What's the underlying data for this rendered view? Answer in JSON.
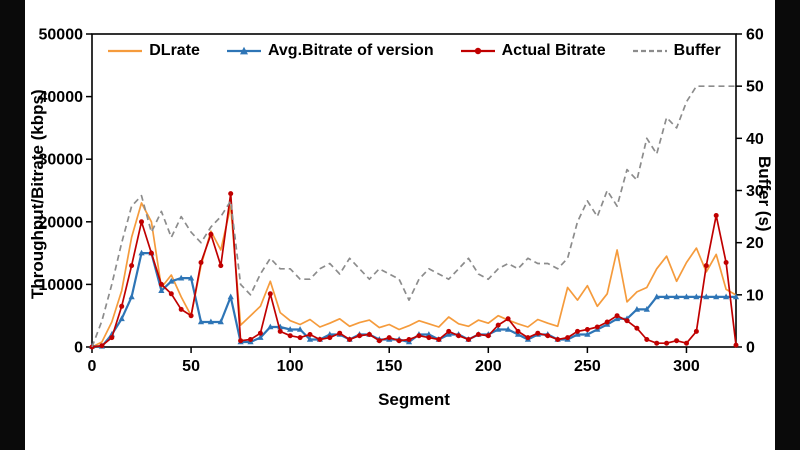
{
  "figure": {
    "left_axis_label": "Throughput/Bitrate (kbps)",
    "right_axis_label": "Buffer (s)",
    "x_axis_label": "Segment"
  },
  "colors": {
    "dlrate": "#F59B3C",
    "avg_bitrate": "#2E75B6",
    "actual_bitrate": "#C00000",
    "buffer": "#8C8C8C",
    "axis": "#000000",
    "background": "#FFFFFF",
    "letterbox": "#0A0A0A"
  },
  "chart_data": {
    "type": "line",
    "title": "",
    "xlabel": "Segment",
    "ylabel_left": "Throughput/Bitrate (kbps)",
    "ylabel_right": "Buffer (s)",
    "xlim": [
      0,
      325
    ],
    "ylim_left": [
      0,
      50000
    ],
    "ylim_right": [
      0,
      60
    ],
    "x_ticks": [
      0,
      50,
      100,
      150,
      200,
      250,
      300
    ],
    "y_ticks_left": [
      0,
      10000,
      20000,
      30000,
      40000,
      50000
    ],
    "y_ticks_right": [
      0,
      10,
      20,
      30,
      40,
      50,
      60
    ],
    "grid": false,
    "legend_position": "top",
    "x": [
      0,
      5,
      10,
      15,
      20,
      25,
      30,
      35,
      40,
      45,
      50,
      55,
      60,
      65,
      70,
      75,
      80,
      85,
      90,
      95,
      100,
      105,
      110,
      115,
      120,
      125,
      130,
      135,
      140,
      145,
      150,
      155,
      160,
      165,
      170,
      175,
      180,
      185,
      190,
      195,
      200,
      205,
      210,
      215,
      220,
      225,
      230,
      235,
      240,
      245,
      250,
      255,
      260,
      265,
      270,
      275,
      280,
      285,
      290,
      295,
      300,
      305,
      310,
      315,
      320,
      325
    ],
    "series": [
      {
        "name": "DLrate",
        "axis": "left",
        "color": "#F59B3C",
        "style": "solid",
        "marker": "none",
        "values": [
          0,
          800,
          4000,
          9000,
          17500,
          23000,
          20000,
          9500,
          11500,
          8000,
          5000,
          13000,
          18500,
          15500,
          22500,
          3500,
          5000,
          6500,
          10500,
          5500,
          4200,
          3600,
          4400,
          3200,
          3800,
          4500,
          3300,
          3900,
          4300,
          3100,
          3600,
          2800,
          3400,
          4200,
          3700,
          3200,
          4800,
          3700,
          3300,
          4300,
          3800,
          5000,
          4300,
          3700,
          3200,
          4400,
          3800,
          3300,
          9500,
          7500,
          9800,
          6500,
          8500,
          15500,
          7200,
          8800,
          9500,
          12500,
          14500,
          10500,
          13500,
          15800,
          12000,
          14800,
          9200,
          8300
        ]
      },
      {
        "name": "Avg.Bitrate of version",
        "axis": "left",
        "color": "#2E75B6",
        "style": "solid",
        "marker": "triangle",
        "values": [
          100,
          100,
          2000,
          4500,
          8000,
          15000,
          15000,
          9000,
          10500,
          11000,
          11000,
          4000,
          4000,
          4000,
          8000,
          800,
          800,
          1500,
          3200,
          3200,
          2800,
          2800,
          1200,
          1200,
          2000,
          2000,
          1200,
          2000,
          2000,
          1200,
          1200,
          1200,
          800,
          2000,
          2000,
          1200,
          2000,
          2000,
          1200,
          2000,
          2000,
          2800,
          2800,
          2000,
          1200,
          2000,
          2000,
          1200,
          1200,
          2000,
          2000,
          2800,
          3600,
          4500,
          4500,
          6000,
          6000,
          8000,
          8000,
          8000,
          8000,
          8000,
          8000,
          8000,
          8000,
          8000
        ]
      },
      {
        "name": "Actual Bitrate",
        "axis": "left",
        "color": "#C00000",
        "style": "solid",
        "marker": "circle",
        "values": [
          0,
          200,
          1500,
          6500,
          13000,
          20000,
          15000,
          10000,
          8500,
          6000,
          5000,
          13500,
          18000,
          13000,
          24500,
          1000,
          1200,
          2200,
          8500,
          2500,
          1800,
          1500,
          2000,
          1200,
          1500,
          2200,
          1200,
          1800,
          2000,
          1000,
          1500,
          1000,
          1200,
          1800,
          1500,
          1200,
          2500,
          1800,
          1200,
          2000,
          1800,
          3500,
          4500,
          2500,
          1500,
          2200,
          1800,
          1200,
          1500,
          2500,
          2800,
          3200,
          4000,
          5000,
          4200,
          3000,
          1200,
          600,
          600,
          1000,
          600,
          2500,
          13000,
          21000,
          13500,
          300
        ]
      },
      {
        "name": "Buffer",
        "axis": "right",
        "color": "#8C8C8C",
        "style": "dashed",
        "marker": "none",
        "values": [
          0,
          5,
          12,
          20,
          27,
          29,
          22,
          26,
          21,
          25,
          22,
          20,
          23,
          25,
          28,
          12,
          10,
          14,
          17,
          15,
          15,
          13,
          13,
          15,
          16,
          14,
          17,
          15,
          13,
          15,
          14,
          13,
          9,
          13,
          15,
          14,
          13,
          15,
          17,
          14,
          13,
          15,
          16,
          15,
          17,
          16,
          16,
          15,
          17,
          24,
          28,
          25,
          30,
          27,
          34,
          32,
          40,
          37,
          44,
          42,
          47,
          50,
          50,
          50,
          50,
          50
        ]
      }
    ]
  }
}
